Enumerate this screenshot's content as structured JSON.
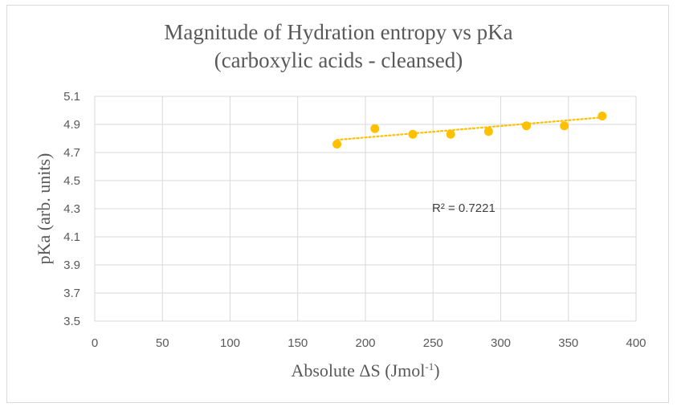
{
  "chart_data": {
    "type": "scatter",
    "title_line1": "Magnitude of Hydration entropy vs pKa",
    "title_line2": "(carboxylic acids - cleansed)",
    "xlabel_main": "Absolute ΔS (Jmol",
    "xlabel_sup": "-1",
    "xlabel_end": ")",
    "ylabel": "pKa (arb. units)",
    "xlim": [
      0,
      400
    ],
    "ylim": [
      3.5,
      5.1
    ],
    "x_ticks": [
      0,
      50,
      100,
      150,
      200,
      250,
      300,
      350,
      400
    ],
    "y_ticks": [
      "3.5",
      "3.7",
      "3.9",
      "4.1",
      "4.3",
      "4.5",
      "4.7",
      "4.9",
      "5.1"
    ],
    "grid": true,
    "series": [
      {
        "color": "#ffc000",
        "points": [
          {
            "x": 179,
            "y": 4.76
          },
          {
            "x": 207,
            "y": 4.87
          },
          {
            "x": 235,
            "y": 4.83
          },
          {
            "x": 263,
            "y": 4.83
          },
          {
            "x": 291,
            "y": 4.85
          },
          {
            "x": 319,
            "y": 4.89
          },
          {
            "x": 347,
            "y": 4.89
          },
          {
            "x": 375,
            "y": 4.96
          }
        ]
      }
    ],
    "trendline": {
      "type": "linear",
      "style": "dotted",
      "color": "#ffc000",
      "x_range": [
        179,
        375
      ],
      "y_range": [
        4.79,
        4.95
      ]
    },
    "annotation": "R² = 0.7221"
  }
}
